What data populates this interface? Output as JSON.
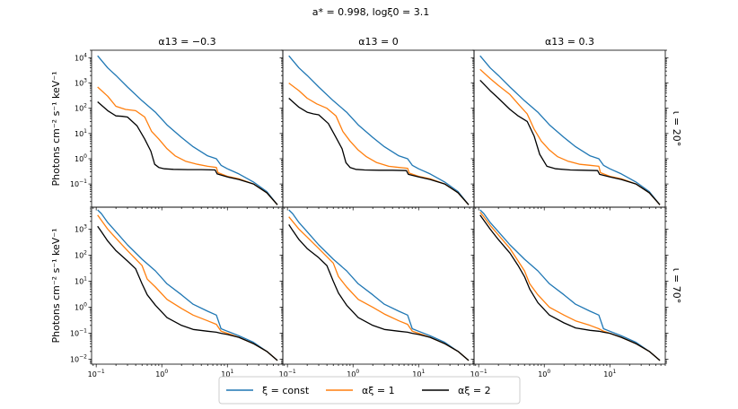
{
  "chart_data": {
    "type": "line",
    "title": "a* = 0.998, logξ0 = 3.1",
    "columns": [
      "α13 = −0.3",
      "α13 = 0",
      "α13 = 0.3"
    ],
    "rows": [
      "ι = 20°",
      "ι = 70°"
    ],
    "ylabel": "Photons cm⁻² s⁻¹ keV⁻¹",
    "xscale": "log",
    "yscale": "log",
    "xlim": [
      0.085,
      70
    ],
    "ylims": [
      [
        0.012,
        20000
      ],
      [
        0.0065,
        7000
      ]
    ],
    "x_ticks": [
      {
        "value": 0.1,
        "base": "10",
        "exp": "−1"
      },
      {
        "value": 1,
        "base": "10",
        "exp": "0"
      },
      {
        "value": 10,
        "base": "10",
        "exp": "1"
      }
    ],
    "y_ticks": [
      [
        {
          "value": 0.1,
          "base": "10",
          "exp": "−1"
        },
        {
          "value": 1,
          "base": "10",
          "exp": "0"
        },
        {
          "value": 10,
          "base": "10",
          "exp": "1"
        },
        {
          "value": 100,
          "base": "10",
          "exp": "2"
        },
        {
          "value": 1000,
          "base": "10",
          "exp": "3"
        },
        {
          "value": 10000,
          "base": "10",
          "exp": "4"
        }
      ],
      [
        {
          "value": 0.01,
          "base": "10",
          "exp": "−2"
        },
        {
          "value": 0.1,
          "base": "10",
          "exp": "−1"
        },
        {
          "value": 1,
          "base": "10",
          "exp": "0"
        },
        {
          "value": 10,
          "base": "10",
          "exp": "1"
        },
        {
          "value": 100,
          "base": "10",
          "exp": "2"
        },
        {
          "value": 1000,
          "base": "10",
          "exp": "3"
        }
      ]
    ],
    "legend": [
      "ξ = const",
      "αξ = 1",
      "αξ = 2"
    ],
    "legend_placement": "bottom-center",
    "colors": [
      "#1f77b4",
      "#ff7f0e",
      "#000000"
    ],
    "panels": [
      {
        "row": 0,
        "col": 0,
        "series": [
          {
            "name": "ξ = const",
            "x": [
              0.105,
              0.15,
              0.2,
              0.3,
              0.5,
              0.8,
              1.2,
              2,
              3,
              5,
              6.8,
              8,
              10,
              15,
              25,
              40,
              58
            ],
            "y": [
              12000,
              4000,
              2000,
              700,
              200,
              70,
              22,
              7,
              3,
              1.3,
              1.0,
              0.55,
              0.4,
              0.25,
              0.12,
              0.05,
              0.015
            ]
          },
          {
            "name": "αξ = 1",
            "x": [
              0.105,
              0.15,
              0.2,
              0.28,
              0.4,
              0.55,
              0.7,
              0.9,
              1.2,
              1.6,
              2.3,
              3.5,
              5,
              6.8,
              7.2,
              10,
              15,
              25,
              40,
              58
            ],
            "y": [
              700,
              300,
              120,
              90,
              80,
              45,
              12,
              6,
              2.5,
              1.3,
              0.8,
              0.6,
              0.5,
              0.45,
              0.28,
              0.2,
              0.16,
              0.1,
              0.045,
              0.015
            ]
          },
          {
            "name": "αξ = 2",
            "x": [
              0.105,
              0.15,
              0.2,
              0.25,
              0.3,
              0.42,
              0.55,
              0.68,
              0.78,
              0.9,
              1.1,
              1.5,
              2.5,
              4,
              6.5,
              7,
              10,
              15,
              25,
              40,
              58
            ],
            "y": [
              180,
              80,
              50,
              48,
              45,
              20,
              6,
              2,
              0.6,
              0.45,
              0.4,
              0.38,
              0.37,
              0.37,
              0.36,
              0.25,
              0.19,
              0.15,
              0.1,
              0.045,
              0.015
            ]
          }
        ]
      },
      {
        "row": 0,
        "col": 1,
        "series": [
          {
            "name": "ξ = const",
            "x": [
              0.105,
              0.15,
              0.2,
              0.3,
              0.5,
              0.8,
              1.2,
              2,
              3,
              5,
              6.8,
              8,
              10,
              15,
              25,
              40,
              58
            ],
            "y": [
              12000,
              4000,
              2000,
              700,
              200,
              70,
              22,
              7,
              3,
              1.3,
              1.0,
              0.55,
              0.4,
              0.25,
              0.12,
              0.05,
              0.015
            ]
          },
          {
            "name": "αξ = 1",
            "x": [
              0.105,
              0.15,
              0.2,
              0.28,
              0.4,
              0.55,
              0.7,
              0.9,
              1.2,
              1.6,
              2.3,
              3.5,
              5,
              6.8,
              7.2,
              10,
              15,
              25,
              40,
              58
            ],
            "y": [
              1000,
              500,
              250,
              150,
              100,
              50,
              12,
              5,
              2.2,
              1.2,
              0.7,
              0.5,
              0.45,
              0.42,
              0.27,
              0.2,
              0.16,
              0.1,
              0.045,
              0.015
            ]
          },
          {
            "name": "αξ = 2",
            "x": [
              0.105,
              0.15,
              0.2,
              0.25,
              0.3,
              0.42,
              0.55,
              0.68,
              0.78,
              0.9,
              1.1,
              1.5,
              2.5,
              4,
              6.5,
              7,
              10,
              15,
              25,
              40,
              58
            ],
            "y": [
              250,
              110,
              70,
              60,
              55,
              25,
              7,
              2.5,
              0.7,
              0.45,
              0.38,
              0.36,
              0.35,
              0.35,
              0.34,
              0.24,
              0.19,
              0.15,
              0.1,
              0.045,
              0.015
            ]
          }
        ]
      },
      {
        "row": 0,
        "col": 2,
        "series": [
          {
            "name": "ξ = const",
            "x": [
              0.105,
              0.15,
              0.2,
              0.3,
              0.5,
              0.8,
              1.2,
              2,
              3,
              5,
              6.8,
              8,
              10,
              15,
              25,
              40,
              58
            ],
            "y": [
              12000,
              4000,
              2000,
              700,
              200,
              70,
              22,
              7,
              3,
              1.3,
              1.0,
              0.55,
              0.4,
              0.25,
              0.12,
              0.05,
              0.015
            ]
          },
          {
            "name": "αξ = 1",
            "x": [
              0.105,
              0.15,
              0.2,
              0.3,
              0.4,
              0.55,
              0.7,
              0.9,
              1.2,
              1.6,
              2.3,
              3.5,
              5,
              6.8,
              7.2,
              10,
              15,
              25,
              40,
              58
            ],
            "y": [
              3500,
              1500,
              800,
              350,
              150,
              60,
              15,
              5,
              2.2,
              1.2,
              0.8,
              0.6,
              0.55,
              0.5,
              0.28,
              0.2,
              0.16,
              0.1,
              0.045,
              0.015
            ]
          },
          {
            "name": "αξ = 2",
            "x": [
              0.105,
              0.15,
              0.2,
              0.3,
              0.4,
              0.55,
              0.7,
              0.85,
              1.1,
              1.5,
              2.5,
              4,
              6.5,
              7,
              10,
              15,
              25,
              40,
              58
            ],
            "y": [
              1300,
              500,
              250,
              90,
              50,
              30,
              8,
              1.5,
              0.5,
              0.4,
              0.36,
              0.35,
              0.34,
              0.24,
              0.19,
              0.15,
              0.1,
              0.045,
              0.015
            ]
          }
        ]
      },
      {
        "row": 1,
        "col": 0,
        "series": [
          {
            "name": "ξ = const",
            "x": [
              0.105,
              0.12,
              0.15,
              0.2,
              0.3,
              0.5,
              0.8,
              1.2,
              2,
              3,
              5,
              6.8,
              8,
              10,
              15,
              25,
              40,
              58
            ],
            "y": [
              5500,
              4000,
              1800,
              800,
              250,
              70,
              25,
              8,
              3,
              1.3,
              0.7,
              0.5,
              0.15,
              0.12,
              0.08,
              0.045,
              0.02,
              0.009
            ]
          },
          {
            "name": "αξ = 1",
            "x": [
              0.105,
              0.12,
              0.15,
              0.2,
              0.3,
              0.5,
              0.6,
              0.8,
              1.2,
              2,
              3,
              5,
              6.8,
              8,
              10,
              15,
              25,
              40,
              58
            ],
            "y": [
              3500,
              2200,
              1000,
              450,
              150,
              40,
              12,
              6,
              2,
              0.9,
              0.5,
              0.3,
              0.22,
              0.12,
              0.1,
              0.07,
              0.04,
              0.02,
              0.009
            ]
          },
          {
            "name": "αξ = 2",
            "x": [
              0.105,
              0.12,
              0.15,
              0.2,
              0.3,
              0.4,
              0.5,
              0.6,
              0.8,
              1.2,
              2,
              3,
              5,
              6.8,
              8,
              10,
              15,
              25,
              40,
              58
            ],
            "y": [
              1300,
              800,
              350,
              150,
              60,
              30,
              8,
              3,
              1.2,
              0.4,
              0.2,
              0.14,
              0.12,
              0.11,
              0.1,
              0.09,
              0.07,
              0.04,
              0.02,
              0.009
            ]
          }
        ]
      },
      {
        "row": 1,
        "col": 1,
        "series": [
          {
            "name": "ξ = const",
            "x": [
              0.105,
              0.12,
              0.15,
              0.2,
              0.3,
              0.5,
              0.8,
              1.2,
              2,
              3,
              5,
              6.8,
              8,
              10,
              15,
              25,
              40,
              58
            ],
            "y": [
              5500,
              4000,
              1800,
              800,
              250,
              70,
              25,
              8,
              3,
              1.3,
              0.7,
              0.5,
              0.15,
              0.12,
              0.08,
              0.045,
              0.02,
              0.009
            ]
          },
          {
            "name": "αξ = 1",
            "x": [
              0.105,
              0.12,
              0.15,
              0.2,
              0.3,
              0.5,
              0.6,
              0.8,
              1.2,
              2,
              3,
              5,
              6.8,
              8,
              10,
              15,
              25,
              40,
              58
            ],
            "y": [
              3000,
              2000,
              1000,
              500,
              180,
              50,
              15,
              6,
              2,
              1,
              0.55,
              0.3,
              0.22,
              0.12,
              0.1,
              0.07,
              0.04,
              0.02,
              0.009
            ]
          },
          {
            "name": "αξ = 2",
            "x": [
              0.105,
              0.12,
              0.15,
              0.2,
              0.3,
              0.4,
              0.5,
              0.6,
              0.8,
              1.2,
              2,
              3,
              5,
              6.8,
              8,
              10,
              15,
              25,
              40,
              58
            ],
            "y": [
              1500,
              900,
              400,
              180,
              80,
              40,
              10,
              3.5,
              1.2,
              0.4,
              0.2,
              0.14,
              0.12,
              0.11,
              0.1,
              0.09,
              0.07,
              0.04,
              0.02,
              0.009
            ]
          }
        ]
      },
      {
        "row": 1,
        "col": 2,
        "series": [
          {
            "name": "ξ = const",
            "x": [
              0.105,
              0.12,
              0.15,
              0.2,
              0.3,
              0.5,
              0.8,
              1.2,
              2,
              3,
              5,
              6.8,
              8,
              10,
              15,
              25,
              40,
              58
            ],
            "y": [
              5500,
              4000,
              1800,
              800,
              250,
              70,
              25,
              8,
              3,
              1.3,
              0.7,
              0.5,
              0.15,
              0.12,
              0.08,
              0.045,
              0.02,
              0.009
            ]
          },
          {
            "name": "αξ = 1",
            "x": [
              0.105,
              0.12,
              0.15,
              0.2,
              0.3,
              0.4,
              0.5,
              0.6,
              0.8,
              1.2,
              2,
              3,
              5,
              6.8,
              8,
              10,
              15,
              25,
              40,
              58
            ],
            "y": [
              4500,
              3000,
              1400,
              600,
              180,
              60,
              25,
              8,
              3,
              1,
              0.5,
              0.3,
              0.2,
              0.15,
              0.12,
              0.1,
              0.07,
              0.04,
              0.02,
              0.009
            ]
          },
          {
            "name": "αξ = 2",
            "x": [
              0.105,
              0.12,
              0.15,
              0.2,
              0.3,
              0.4,
              0.5,
              0.6,
              0.8,
              1.2,
              2,
              3,
              5,
              6.8,
              8,
              10,
              15,
              25,
              40,
              58
            ],
            "y": [
              3500,
              2200,
              1000,
              400,
              120,
              40,
              15,
              5,
              1.5,
              0.5,
              0.25,
              0.16,
              0.13,
              0.12,
              0.11,
              0.1,
              0.07,
              0.04,
              0.02,
              0.009
            ]
          }
        ]
      }
    ]
  }
}
